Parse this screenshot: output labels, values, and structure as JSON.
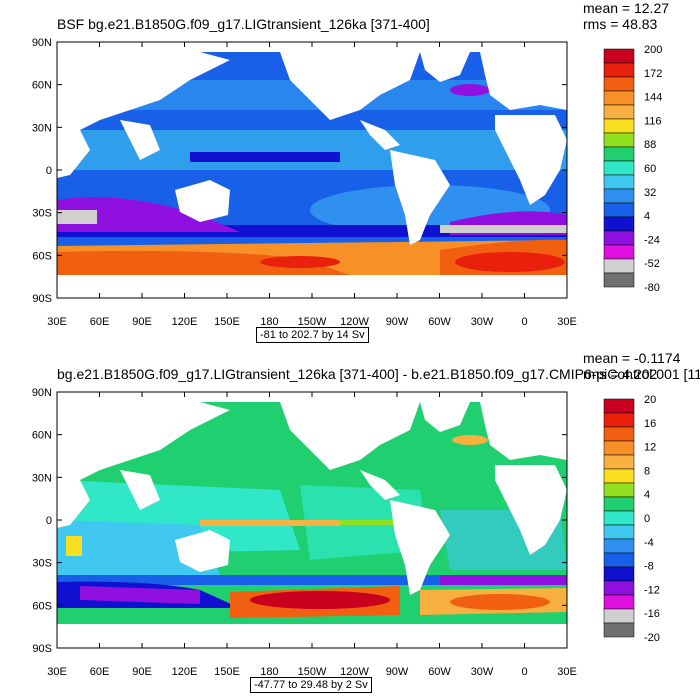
{
  "panels": [
    {
      "title": "BSF bg.e21.B1850G.f09_g17.LIGtransient_126ka [371-400]",
      "mean": "mean = 12.27",
      "rms": "rms = 48.83",
      "range_label": "-81 to 202.7 by 14 Sv",
      "lat_labels": [
        "90N",
        "60N",
        "30N",
        "0",
        "30S",
        "60S",
        "90S"
      ],
      "lon_labels": [
        "30E",
        "60E",
        "90E",
        "120E",
        "150E",
        "180",
        "150W",
        "120W",
        "90W",
        "60W",
        "30W",
        "0",
        "30E"
      ],
      "colorbar_labels": [
        "200",
        "172",
        "144",
        "116",
        "88",
        "60",
        "32",
        "4",
        "-24",
        "-52",
        "-80"
      ],
      "colorbar_colors": [
        "#c8001e",
        "#e8200c",
        "#f06010",
        "#f89028",
        "#f8b040",
        "#f8e020",
        "#90e020",
        "#20d070",
        "#30e8c8",
        "#40c8f0",
        "#3090f0",
        "#1860e8",
        "#1010d0",
        "#9010e0",
        "#e010e0",
        "#d0d0d0",
        "#707070"
      ]
    },
    {
      "title": "bg.e21.B1850G.f09_g17.LIGtransient_126ka [371-400] - b.e21.B1850.f09_g17.CMIP6-piControl.001 [11",
      "mean": "mean = -0.1174",
      "rms": "rms = 4.202",
      "range_label": "-47.77 to 29.48 by 2 Sv",
      "lat_labels": [
        "90N",
        "60N",
        "30N",
        "0",
        "30S",
        "60S",
        "90S"
      ],
      "lon_labels": [
        "30E",
        "60E",
        "90E",
        "120E",
        "150E",
        "180",
        "150W",
        "120W",
        "90W",
        "60W",
        "30W",
        "0",
        "30E"
      ],
      "colorbar_labels": [
        "20",
        "16",
        "12",
        "8",
        "4",
        "0",
        "-4",
        "-8",
        "-12",
        "-16",
        "-20"
      ],
      "colorbar_colors": [
        "#c8001e",
        "#e8200c",
        "#f06010",
        "#f89028",
        "#f8b040",
        "#f8e020",
        "#90e020",
        "#20d070",
        "#30e8c8",
        "#40c8f0",
        "#3090f0",
        "#1860e8",
        "#1010d0",
        "#9010e0",
        "#e010e0",
        "#d0d0d0",
        "#707070"
      ]
    }
  ]
}
